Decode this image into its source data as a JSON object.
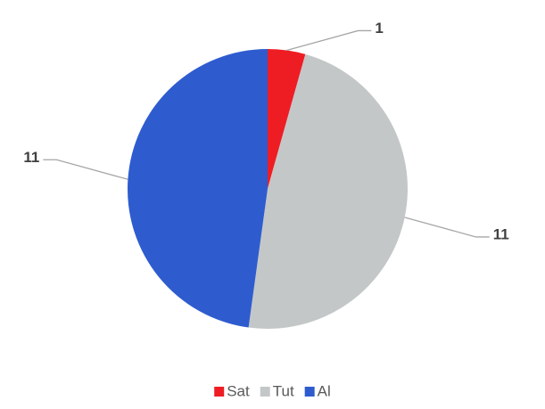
{
  "chart_data": {
    "type": "pie",
    "categories": [
      "Sat",
      "Tut",
      "Al"
    ],
    "values": [
      1,
      11,
      11
    ],
    "colors": [
      "#ee1d24",
      "#c4c7c8",
      "#2e5ccf"
    ],
    "legend": "bottom"
  }
}
